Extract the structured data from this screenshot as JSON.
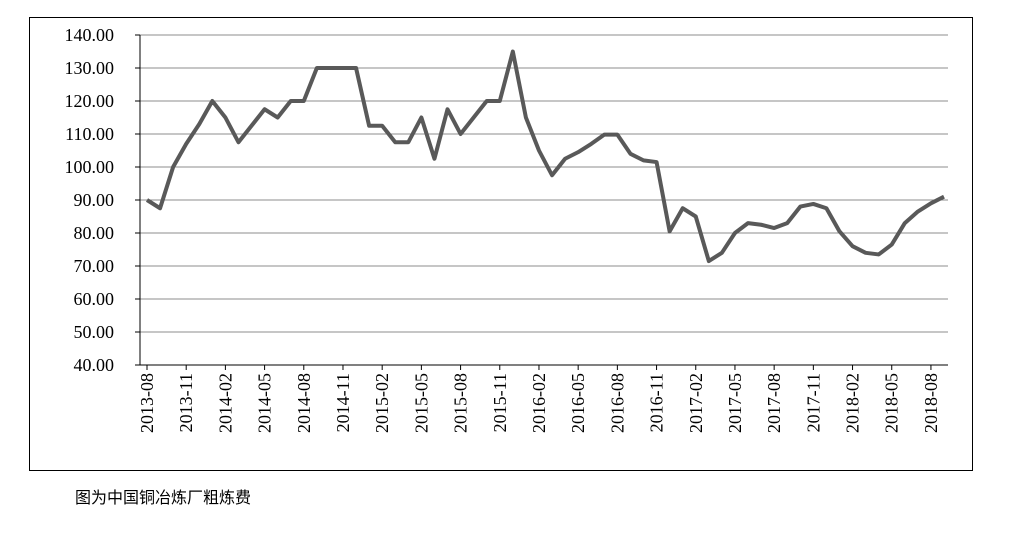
{
  "chart_data": {
    "type": "line",
    "categories": [
      "2013-08",
      null,
      null,
      "2013-11",
      null,
      null,
      "2014-02",
      null,
      null,
      "2014-05",
      null,
      null,
      "2014-08",
      null,
      null,
      "2014-11",
      null,
      null,
      "2015-02",
      null,
      null,
      "2015-05",
      null,
      null,
      "2015-08",
      null,
      null,
      "2015-11",
      null,
      null,
      "2016-02",
      null,
      null,
      "2016-05",
      null,
      null,
      "2016-08",
      null,
      null,
      "2016-11",
      null,
      null,
      "2017-02",
      null,
      null,
      "2017-05",
      null,
      null,
      "2017-08",
      null,
      null,
      "2017-11",
      null,
      null,
      "2018-02",
      null,
      null,
      "2018-05",
      null,
      null,
      "2018-08",
      null
    ],
    "values": [
      90,
      87.5,
      100,
      107,
      113,
      120,
      115,
      107.5,
      112.5,
      117.5,
      115,
      120,
      120,
      130,
      130,
      130,
      130,
      112.5,
      112.5,
      107.5,
      107.5,
      115,
      102.5,
      117.5,
      110,
      115,
      120,
      120,
      135,
      115,
      105,
      97.5,
      102.5,
      104.5,
      107,
      109.8,
      109.8,
      104,
      102,
      101.5,
      80.5,
      87.5,
      85,
      71.5,
      74,
      80,
      83,
      82.5,
      81.5,
      83,
      88,
      88.8,
      87.5,
      80.5,
      76,
      74,
      73.5,
      76.5,
      83,
      86.5,
      89,
      91
    ],
    "color": "#595959",
    "ylim": [
      40,
      140
    ],
    "yticks": [
      {
        "value": 40,
        "label": "40.00"
      },
      {
        "value": 50,
        "label": "50.00"
      },
      {
        "value": 60,
        "label": "60.00"
      },
      {
        "value": 70,
        "label": "70.00"
      },
      {
        "value": 80,
        "label": "80.00"
      },
      {
        "value": 90,
        "label": "90.00"
      },
      {
        "value": 100,
        "label": "100.00"
      },
      {
        "value": 110,
        "label": "110.00"
      },
      {
        "value": 120,
        "label": "120.00"
      },
      {
        "value": 130,
        "label": "130.00"
      },
      {
        "value": 140,
        "label": "140.00"
      }
    ],
    "grid": true
  },
  "caption": "图为中国铜冶炼厂粗炼费"
}
